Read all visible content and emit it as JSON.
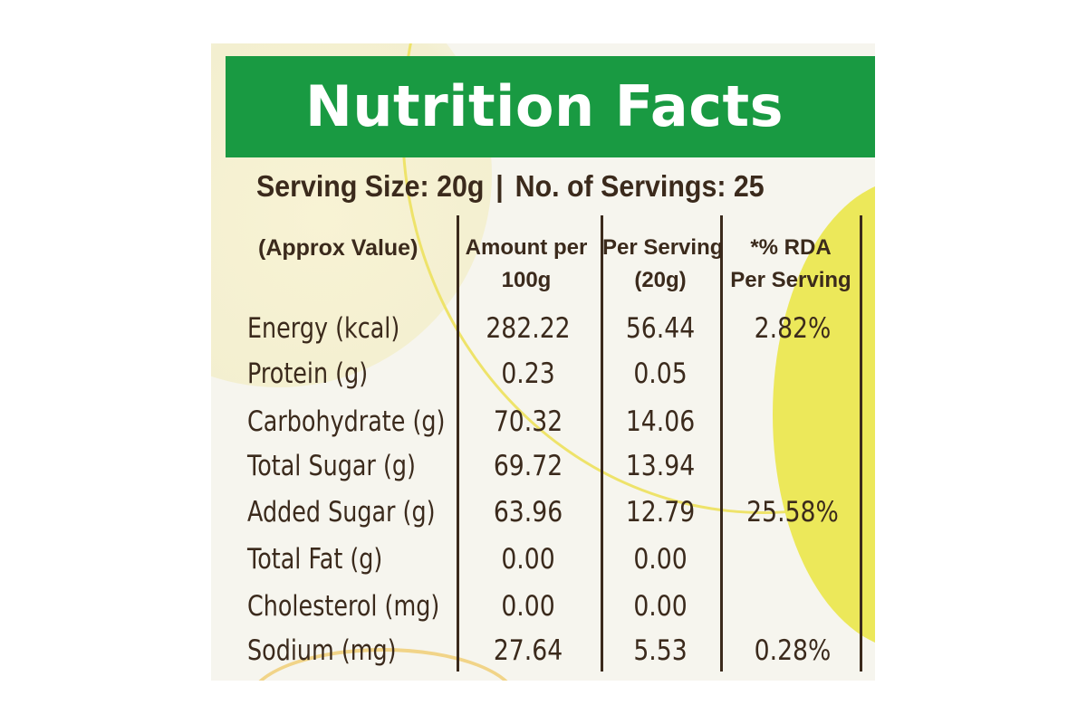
{
  "title": "Nutrition Facts",
  "serving": {
    "size": "Serving Size: 20g",
    "separator": "|",
    "count": "No. of Servings: 25"
  },
  "headers": {
    "approx": "(Approx Value)",
    "amount_line1": "Amount per",
    "amount_line2": "100g",
    "per_serving_line1": "Per Serving",
    "per_serving_line2": "(20g)",
    "rda_line1": "*% RDA",
    "rda_line2": "Per Serving"
  },
  "rows": [
    {
      "nutrient": "Energy (kcal)",
      "per100": "282.22",
      "perServing": "56.44",
      "rda": "2.82%"
    },
    {
      "nutrient": "Protein (g)",
      "per100": "0.23",
      "perServing": "0.05",
      "rda": ""
    },
    {
      "nutrient": "Carbohydrate (g)",
      "per100": "70.32",
      "perServing": "14.06",
      "rda": ""
    },
    {
      "nutrient": "Total Sugar (g)",
      "per100": "69.72",
      "perServing": "13.94",
      "rda": ""
    },
    {
      "nutrient": "Added Sugar (g)",
      "per100": "63.96",
      "perServing": "12.79",
      "rda": "25.58%"
    },
    {
      "nutrient": "Total Fat (g)",
      "per100": "0.00",
      "perServing": "0.00",
      "rda": ""
    },
    {
      "nutrient": "Cholesterol (mg)",
      "per100": "0.00",
      "perServing": "0.00",
      "rda": ""
    },
    {
      "nutrient": "Sodium (mg)",
      "per100": "27.64",
      "perServing": "5.53",
      "rda": "0.28%"
    }
  ],
  "colors": {
    "banner": "#199a42",
    "text": "#3b2a1c",
    "accent_yellow": "#ece85a"
  }
}
